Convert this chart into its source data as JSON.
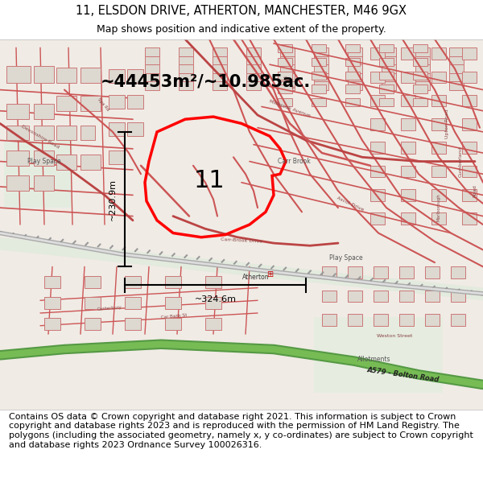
{
  "title_line1": "11, ELSDON DRIVE, ATHERTON, MANCHESTER, M46 9GX",
  "title_line2": "Map shows position and indicative extent of the property.",
  "area_text": "~44453m²/~10.985ac.",
  "label_number": "11",
  "dim_vertical": "~230.9m",
  "dim_horizontal": "~324.6m",
  "footer_text": "Contains OS data © Crown copyright and database right 2021. This information is subject to Crown copyright and database rights 2023 and is reproduced with the permission of HM Land Registry. The polygons (including the associated geometry, namely x, y co-ordinates) are subject to Crown copyright and database rights 2023 Ordnance Survey 100026316.",
  "map_bg": "#f2ede8",
  "road_pink": "#e8a0a0",
  "road_red": "#cc3333",
  "property_red": "#ff0000",
  "green_road": "#6aaa6a",
  "green_road_light": "#90cc90",
  "rail_color": "#999999",
  "building_fill": "#ddd8d0",
  "building_edge": "#cc7777",
  "title_fontsize": 10.5,
  "subtitle_fontsize": 9,
  "footer_fontsize": 8.0,
  "area_fontsize": 15
}
